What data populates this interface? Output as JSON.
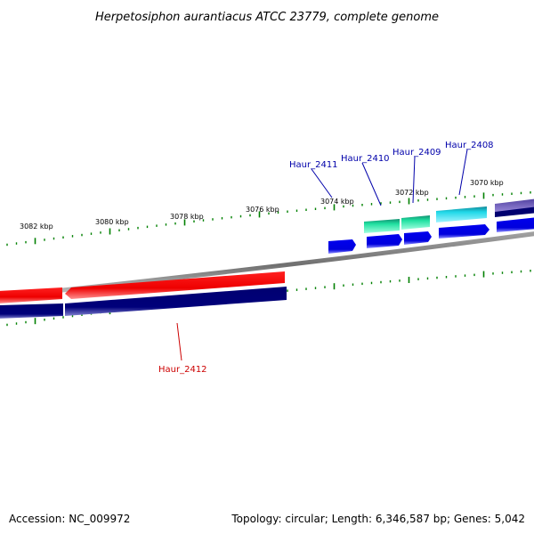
{
  "title": "Herpetosiphon aurantiacus ATCC 23779, complete genome",
  "kbp_labels": [
    "3082 kbp",
    "3080 kbp",
    "3078 kbp",
    "3076 kbp",
    "3074 kbp",
    "3072 kbp",
    "3070 kbp"
  ],
  "genes": [
    {
      "name": "Haur_2411",
      "color": "#0000aa"
    },
    {
      "name": "Haur_2410",
      "color": "#0000aa"
    },
    {
      "name": "Haur_2409",
      "color": "#0000aa"
    },
    {
      "name": "Haur_2408",
      "color": "#0000aa"
    },
    {
      "name": "Haur_2412",
      "color": "#cc0000"
    }
  ],
  "colors": {
    "forward_cds": "#0000ee",
    "reverse_cds": "#ff0000",
    "forward_contig": "#000080",
    "teal_gene": "#20e0a0",
    "cyan_gene": "#20d8e8",
    "purple_gene": "#7060c0",
    "tick": "#008000",
    "backbone": "#888888"
  },
  "footer": {
    "accession": "Accession: NC_009972",
    "topology": "Topology: circular; Length: 6,346,587 bp; Genes: 5,042"
  }
}
